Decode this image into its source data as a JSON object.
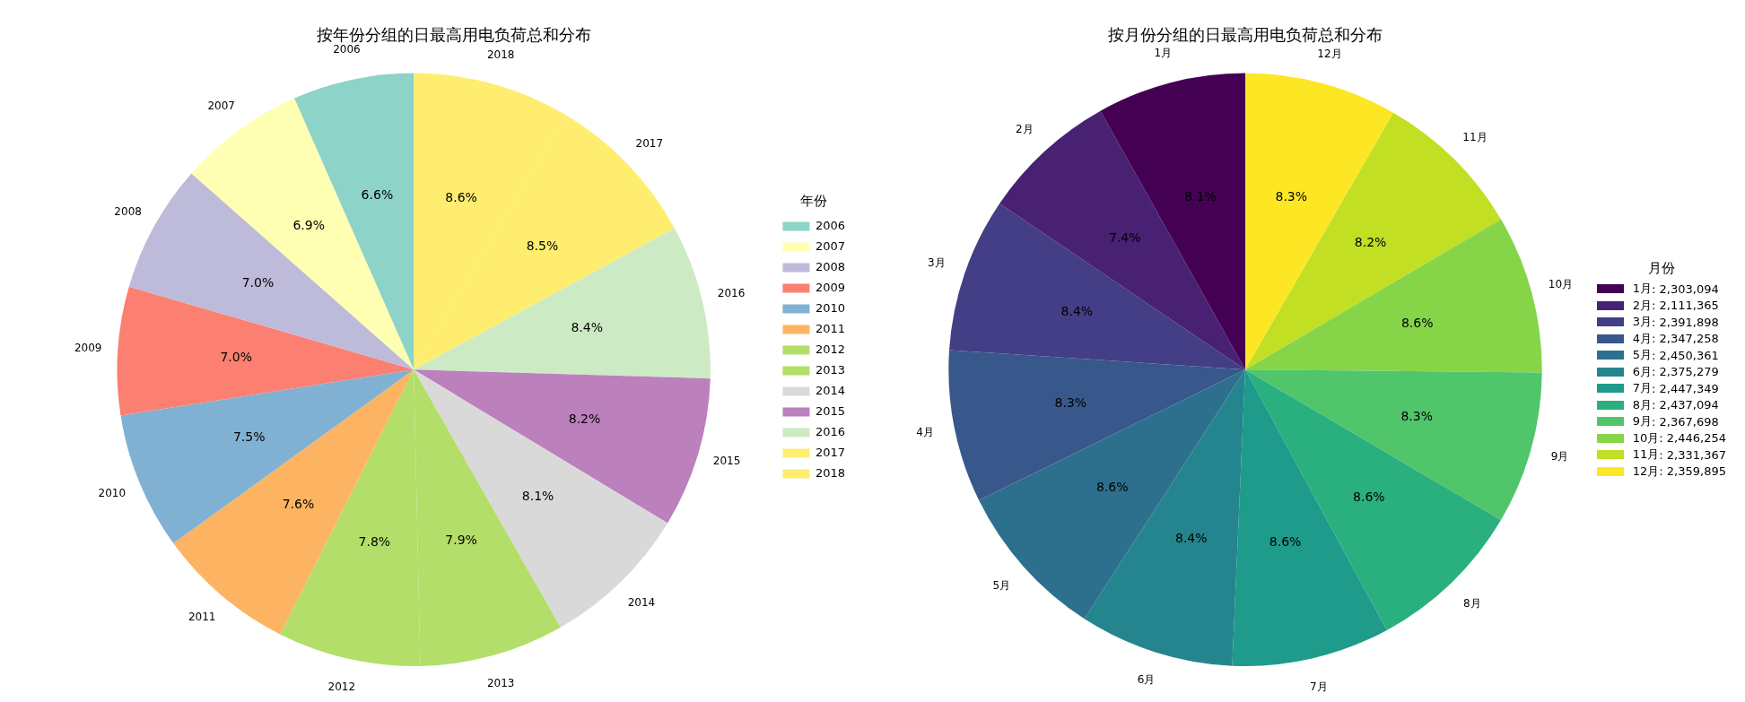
{
  "chart_data": [
    {
      "type": "pie",
      "title": "按年份分组的日最高用电负荷总和分布",
      "legend_title": "年份",
      "legend": "right",
      "categories": [
        "2006",
        "2007",
        "2008",
        "2009",
        "2010",
        "2011",
        "2012",
        "2013",
        "2014",
        "2015",
        "2016",
        "2017",
        "2018"
      ],
      "values": [
        6.6,
        6.9,
        7.0,
        7.0,
        7.5,
        7.6,
        7.8,
        7.9,
        8.1,
        8.2,
        8.4,
        8.5,
        8.6
      ],
      "value_labels": [
        "6.6%",
        "6.9%",
        "7.0%",
        "7.0%",
        "7.5%",
        "7.6%",
        "7.8%",
        "7.9%",
        "8.1%",
        "8.2%",
        "8.4%",
        "8.5%",
        "8.6%"
      ],
      "colors": [
        "#8dd3c7",
        "#ffffb3",
        "#bebada",
        "#fb8072",
        "#80b1d3",
        "#fdb462",
        "#b3de69",
        "#b3de69",
        "#d9d9d9",
        "#bc80bd",
        "#ccebc5",
        "#ffed6f",
        "#ffed6f"
      ]
    },
    {
      "type": "pie",
      "title": "按月份分组的日最高用电负荷总和分布",
      "legend_title": "月份",
      "legend": "right",
      "categories": [
        "1月",
        "2月",
        "3月",
        "4月",
        "5月",
        "6月",
        "7月",
        "8月",
        "9月",
        "10月",
        "11月",
        "12月"
      ],
      "values": [
        8.1,
        7.4,
        8.4,
        8.3,
        8.6,
        8.4,
        8.6,
        8.6,
        8.3,
        8.6,
        8.2,
        8.3
      ],
      "annotations": [
        ": 2,303,094",
        ": 2,111,365",
        ": 2,391,898",
        ": 2,347,258",
        ": 2,450,361",
        ": 2,375,279",
        ": 2,447,349",
        ": 2,437,094",
        ": 2,367,698",
        ": 2,446,254",
        ": 2,331,367",
        ": 2,359,895"
      ],
      "value_labels": [
        "8.1%",
        "7.4%",
        "8.4%",
        "8.3%",
        "8.6%",
        "8.4%",
        "8.6%",
        "8.6%",
        "8.3%",
        "8.6%",
        "8.2%",
        "8.3%"
      ],
      "colors": [
        "#440154",
        "#482173",
        "#433e85",
        "#38588c",
        "#2d708e",
        "#25858e",
        "#1e9b8a",
        "#2ab07f",
        "#51c56a",
        "#86d549",
        "#c2df23",
        "#fde725"
      ]
    }
  ]
}
